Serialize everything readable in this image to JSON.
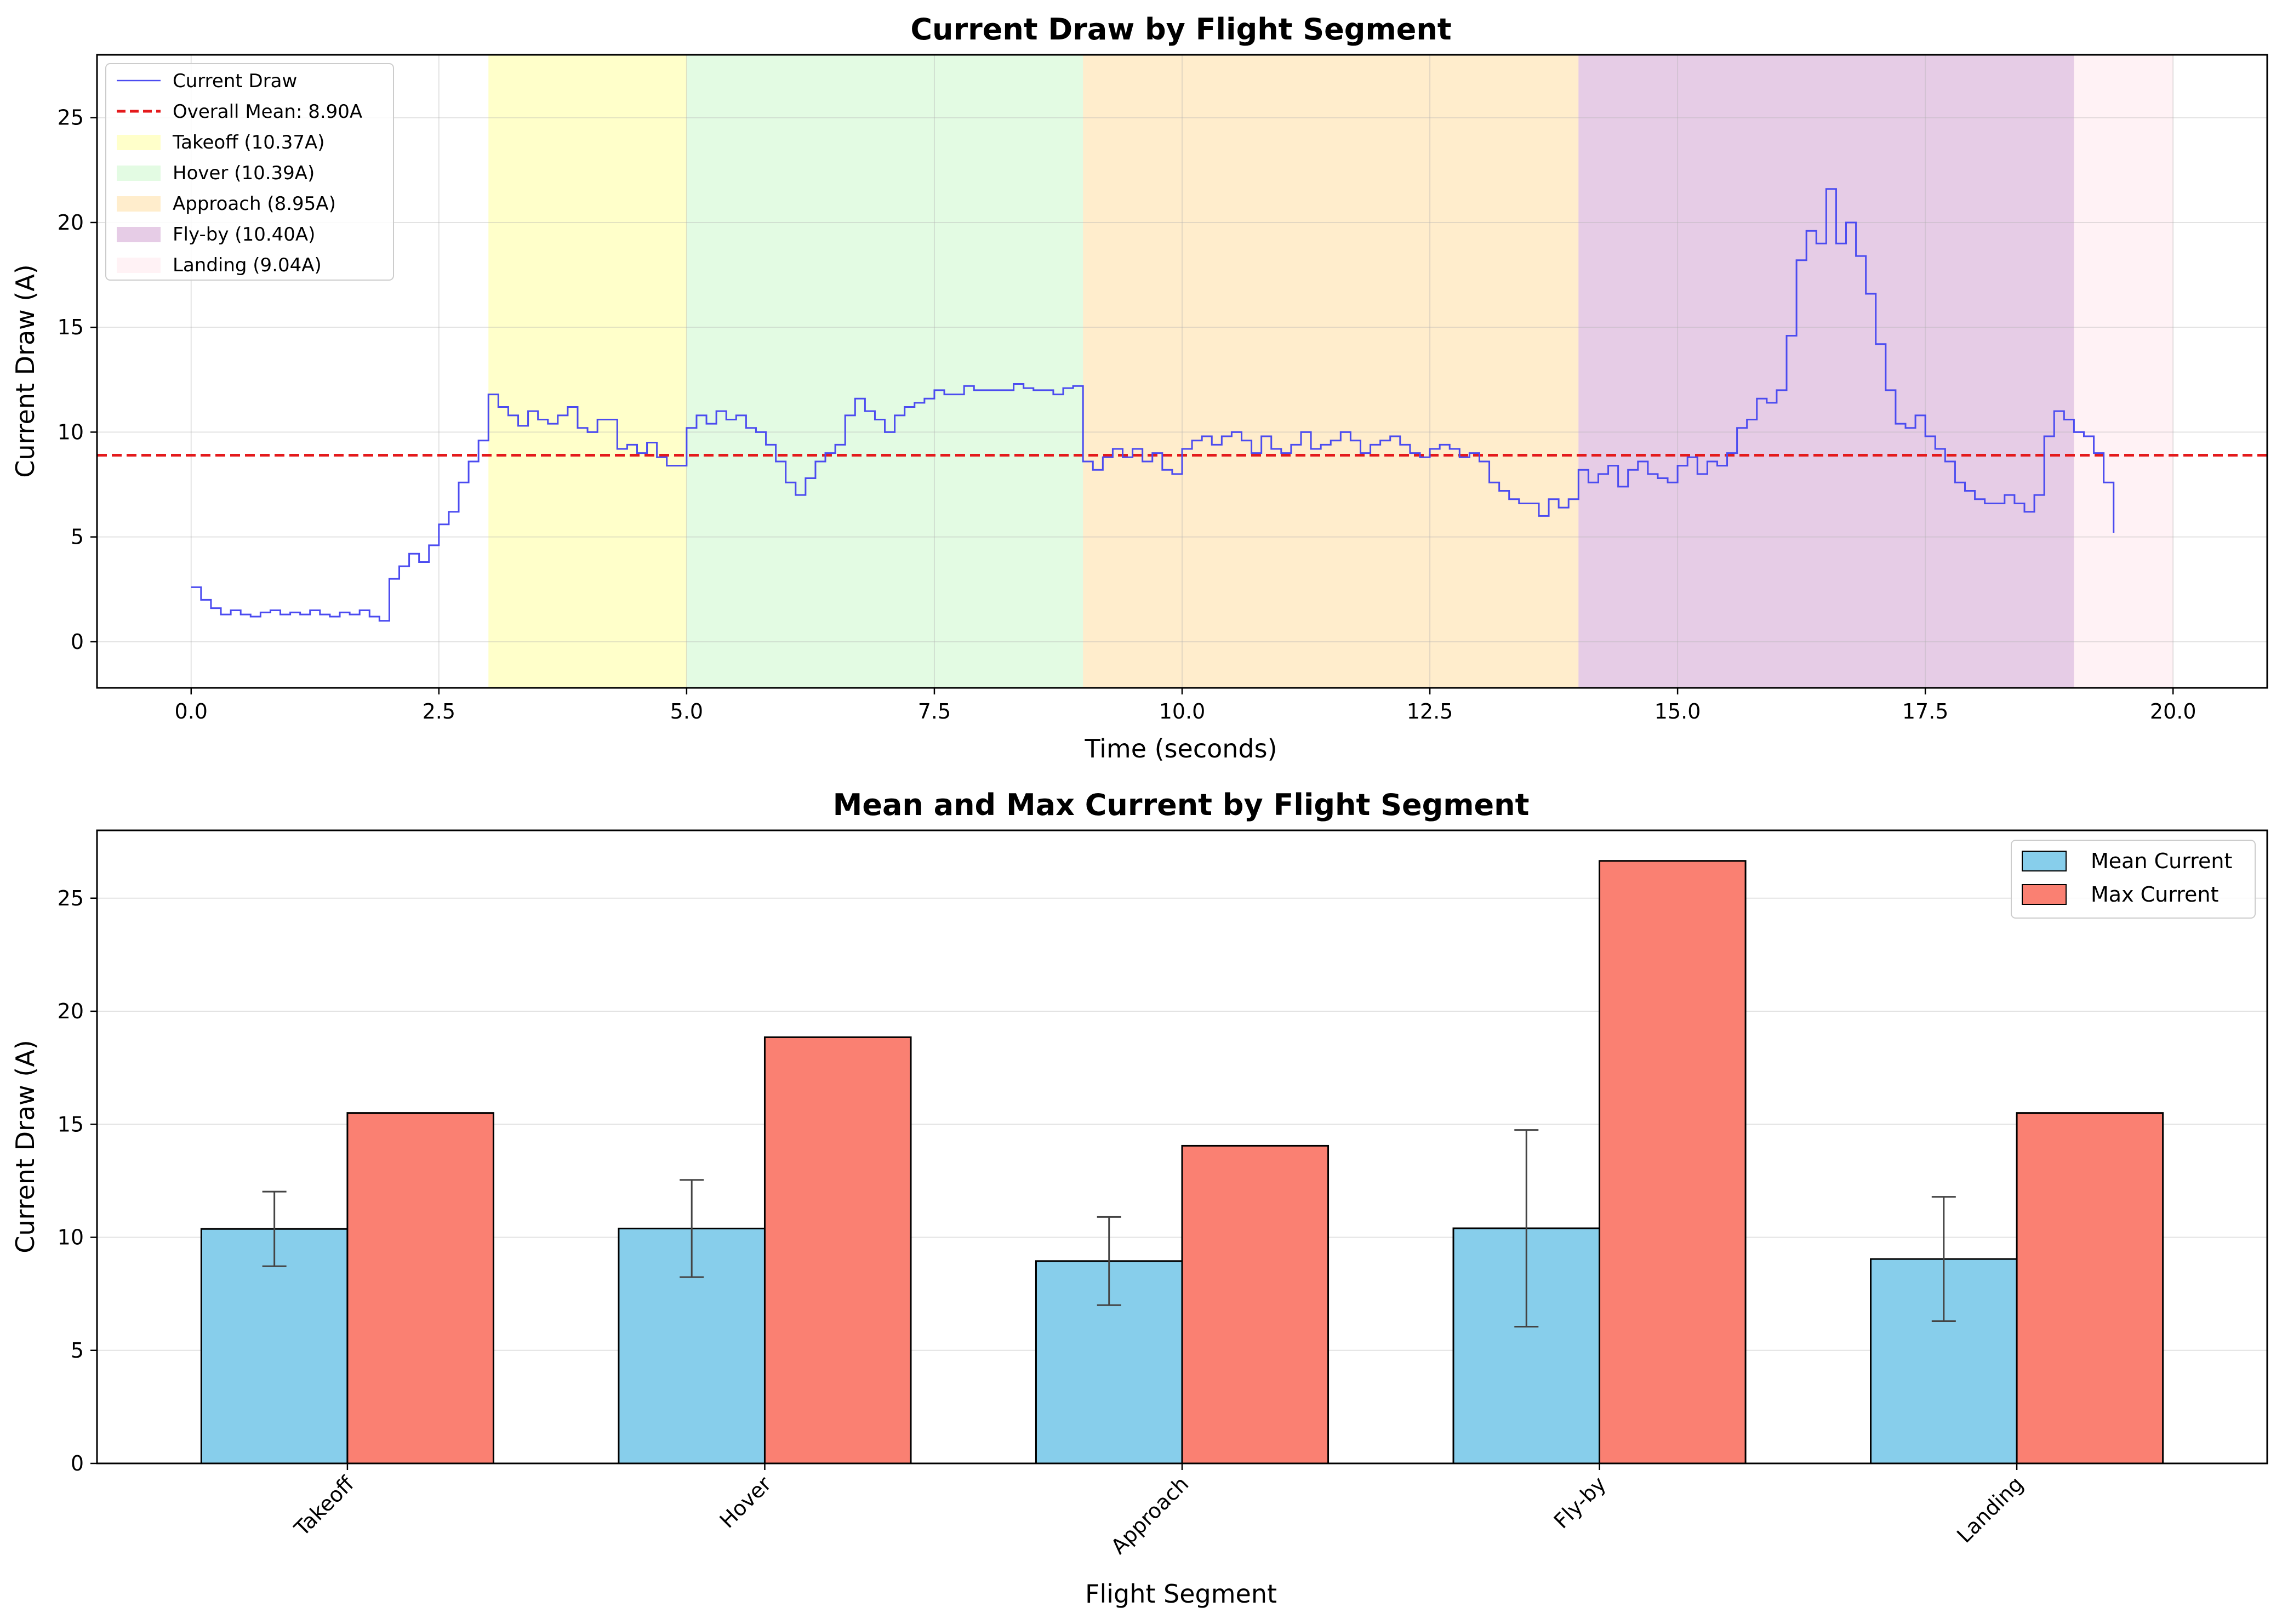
{
  "chart_data": [
    {
      "type": "line",
      "title": "Current Draw by Flight Segment",
      "xlabel": "Time (seconds)",
      "ylabel": "Current Draw (A)",
      "xlim": [
        -0.95,
        20.95
      ],
      "ylim": [
        -2.2,
        28.0
      ],
      "xticks": [
        0,
        2.5,
        5,
        7.5,
        10,
        12.5,
        15,
        17.5,
        20
      ],
      "xtick_labels": [
        "0.0",
        "2.5",
        "5.0",
        "7.5",
        "10.0",
        "12.5",
        "15.0",
        "17.5",
        "20.0"
      ],
      "yticks": [
        0,
        5,
        10,
        15,
        20,
        25
      ],
      "ytick_labels": [
        "0",
        "5",
        "10",
        "15",
        "20",
        "25"
      ],
      "grid": true,
      "legend_position": "upper-left",
      "colors": {
        "line": "#4b4bf0",
        "mean_line": "#e41a1c"
      },
      "mean_line": {
        "value": 8.9,
        "label": "Overall Mean: 8.90A"
      },
      "series": [
        {
          "name": "Current Draw",
          "x_start": 0.0,
          "x_step": 0.1,
          "values": [
            2.6,
            2.0,
            1.6,
            1.3,
            1.5,
            1.3,
            1.2,
            1.4,
            1.5,
            1.3,
            1.4,
            1.3,
            1.5,
            1.3,
            1.2,
            1.4,
            1.3,
            1.5,
            1.2,
            1.0,
            3.0,
            3.6,
            4.2,
            3.8,
            4.6,
            5.6,
            6.2,
            7.6,
            8.6,
            9.6,
            11.8,
            11.2,
            10.8,
            10.3,
            11.0,
            10.6,
            10.4,
            10.8,
            11.2,
            10.2,
            10.0,
            10.6,
            10.6,
            9.2,
            9.4,
            9.0,
            9.5,
            8.8,
            8.4,
            8.4,
            10.2,
            10.8,
            10.4,
            11.0,
            10.6,
            10.8,
            10.2,
            10.0,
            9.4,
            8.6,
            7.6,
            7.0,
            7.8,
            8.6,
            9.0,
            9.4,
            10.8,
            11.6,
            11.0,
            10.6,
            10.0,
            10.8,
            11.2,
            11.4,
            11.6,
            12.0,
            11.8,
            11.8,
            12.2,
            12.0,
            12.0,
            12.0,
            12.0,
            12.3,
            12.1,
            12.0,
            12.0,
            11.8,
            12.1,
            12.2,
            8.6,
            8.2,
            8.8,
            9.2,
            8.8,
            9.2,
            8.6,
            9.0,
            8.2,
            8.0,
            9.2,
            9.6,
            9.8,
            9.4,
            9.8,
            10.0,
            9.6,
            9.0,
            9.8,
            9.2,
            9.0,
            9.4,
            10.0,
            9.2,
            9.4,
            9.6,
            10.0,
            9.6,
            9.0,
            9.4,
            9.6,
            9.8,
            9.4,
            9.0,
            8.8,
            9.2,
            9.4,
            9.2,
            8.8,
            9.0,
            8.6,
            7.6,
            7.2,
            6.8,
            6.6,
            6.6,
            6.0,
            6.8,
            6.4,
            6.8,
            8.2,
            7.6,
            8.0,
            8.4,
            7.4,
            8.2,
            8.6,
            8.0,
            7.8,
            7.6,
            8.4,
            8.8,
            8.0,
            8.6,
            8.4,
            9.0,
            10.2,
            10.6,
            11.6,
            11.4,
            12.0,
            14.6,
            18.2,
            19.6,
            19.0,
            21.6,
            19.0,
            20.0,
            18.4,
            16.6,
            14.2,
            12.0,
            10.4,
            10.2,
            10.8,
            9.8,
            9.2,
            8.6,
            7.6,
            7.2,
            6.8,
            6.6,
            6.6,
            7.0,
            6.6,
            6.2,
            7.0,
            9.8,
            11.0,
            10.6,
            10.0,
            9.8,
            9.0,
            7.6,
            5.2
          ]
        }
      ],
      "bands": [
        {
          "name": "Takeoff",
          "label": "Takeoff (10.37A)",
          "start": 3,
          "end": 5,
          "color": "#ffff66",
          "opacity": 0.35
        },
        {
          "name": "Hover",
          "label": "Hover (10.39A)",
          "start": 5,
          "end": 9,
          "color": "#90ee90",
          "opacity": 0.25
        },
        {
          "name": "Approach",
          "label": "Approach (8.95A)",
          "start": 9,
          "end": 14,
          "color": "#ffa500",
          "opacity": 0.2
        },
        {
          "name": "Fly-by",
          "label": "Fly-by (10.40A)",
          "start": 14,
          "end": 19,
          "color": "#800080",
          "opacity": 0.2
        },
        {
          "name": "Landing",
          "label": "Landing (9.04A)",
          "start": 19,
          "end": 20,
          "color": "#ffc0cb",
          "opacity": 0.2
        }
      ]
    },
    {
      "type": "bar",
      "title": "Mean and Max Current by Flight Segment",
      "xlabel": "Flight Segment",
      "ylabel": "Current Draw (A)",
      "ylim": [
        0,
        28.0
      ],
      "yticks": [
        0,
        5,
        10,
        15,
        20,
        25
      ],
      "ytick_labels": [
        "0",
        "5",
        "10",
        "15",
        "20",
        "25"
      ],
      "grid": true,
      "legend_position": "upper-right",
      "categories": [
        "Takeoff",
        "Hover",
        "Approach",
        "Fly-by",
        "Landing"
      ],
      "series": [
        {
          "name": "Mean Current",
          "color": "#87ceeb",
          "values": [
            10.37,
            10.39,
            8.95,
            10.4,
            9.04
          ],
          "errors": [
            1.65,
            2.15,
            1.95,
            4.35,
            2.75
          ]
        },
        {
          "name": "Max Current",
          "color": "#fa8072",
          "values": [
            15.5,
            18.85,
            14.05,
            26.65,
            15.5
          ]
        }
      ]
    }
  ]
}
